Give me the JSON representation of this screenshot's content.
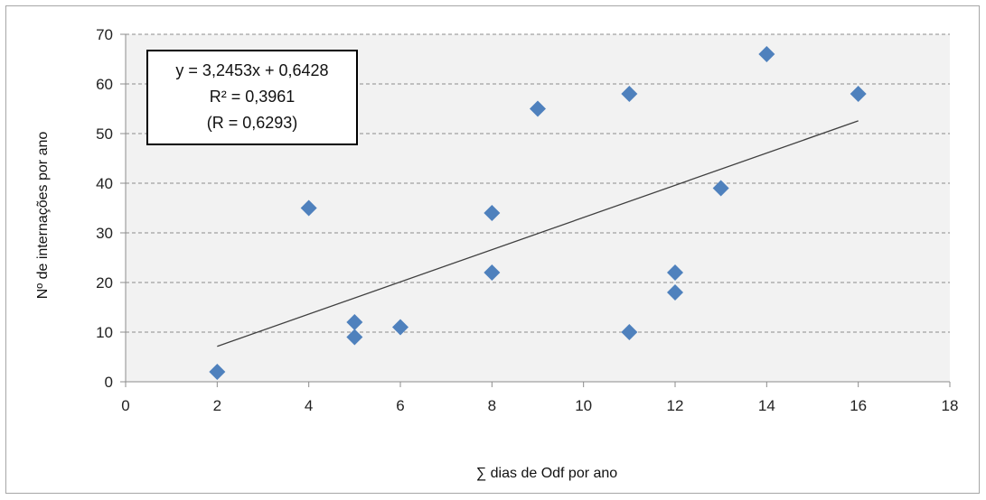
{
  "chart_data": {
    "type": "scatter",
    "xlabel": "∑ dias de Odf por ano",
    "ylabel": "Nº de internações por ano",
    "xlim": [
      0,
      18
    ],
    "ylim": [
      0,
      70
    ],
    "x_ticks": [
      0,
      2,
      4,
      6,
      8,
      10,
      12,
      14,
      16,
      18
    ],
    "y_ticks": [
      0,
      10,
      20,
      30,
      40,
      50,
      60,
      70
    ],
    "grid": "horizontal dashed",
    "plot_background": "#f2f2f2",
    "marker": "diamond",
    "marker_color": "#4f81bd",
    "points": [
      {
        "x": 2,
        "y": 2
      },
      {
        "x": 4,
        "y": 35
      },
      {
        "x": 5,
        "y": 12
      },
      {
        "x": 5,
        "y": 9
      },
      {
        "x": 6,
        "y": 11
      },
      {
        "x": 8,
        "y": 34
      },
      {
        "x": 8,
        "y": 22
      },
      {
        "x": 9,
        "y": 55
      },
      {
        "x": 11,
        "y": 58
      },
      {
        "x": 11,
        "y": 10
      },
      {
        "x": 12,
        "y": 22
      },
      {
        "x": 12,
        "y": 18
      },
      {
        "x": 13,
        "y": 39
      },
      {
        "x": 14,
        "y": 66
      },
      {
        "x": 16,
        "y": 58
      }
    ],
    "trendline": {
      "type": "linear",
      "slope": 3.2453,
      "intercept": 0.6428,
      "x_range": [
        2,
        16
      ],
      "color": "#404040"
    },
    "annotation": {
      "lines": [
        "y = 3,2453x + 0,6428",
        "R² = 0,3961",
        "(R = 0,6293)"
      ]
    }
  }
}
